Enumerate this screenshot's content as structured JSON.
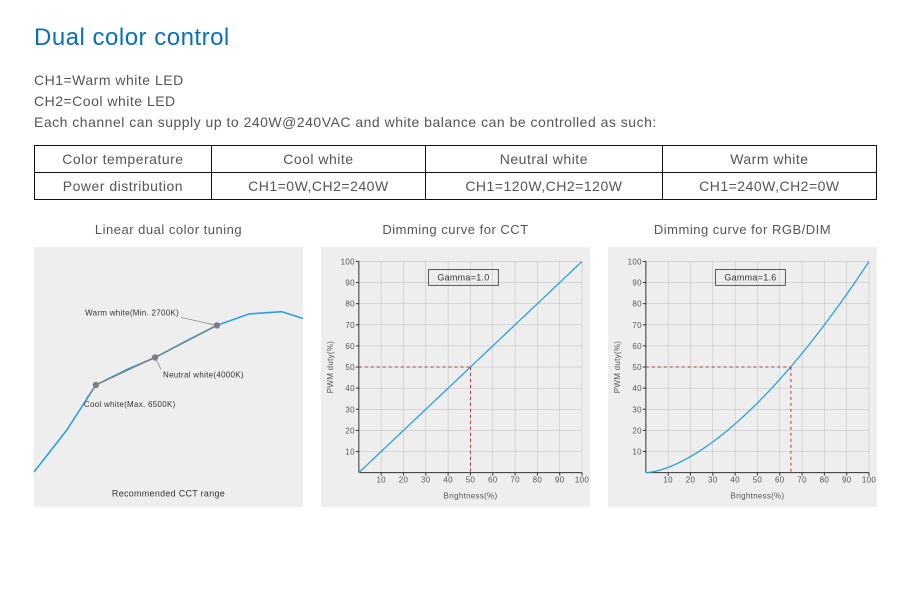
{
  "title": "Dual color control",
  "intro": {
    "line1": "CH1=Warm white LED",
    "line2": "CH2=Cool white LED",
    "line3": "Each channel can supply up to 240W@240VAC and white balance can be controlled as such:"
  },
  "table": {
    "headers": [
      "Color temperature",
      "Cool white",
      "Neutral white",
      "Warm white"
    ],
    "row_label": "Power distribution",
    "cells": [
      "CH1=0W,CH2=240W",
      "CH1=120W,CH2=120W",
      "CH1=240W,CH2=0W"
    ]
  },
  "charts": {
    "panel_bg": "#eeeeee",
    "curve_color": "#2aa1d8",
    "grid_color": "#bdbdbd",
    "marker_color": "#7e7e7e",
    "dash_color": "#b23a3a",
    "axis_fontsize": 8,
    "linear": {
      "title": "Linear dual color tuning",
      "labels": {
        "cool": "Cool white(Max. 6500K)",
        "neutral": "Neutral white(4000K)",
        "warm": "Warm white(Min. 2700K)"
      },
      "footer": "Recommended CCT range",
      "points": {
        "cool": [
          0.23,
          0.6
        ],
        "neutral": [
          0.45,
          0.48
        ],
        "warm": [
          0.68,
          0.34
        ]
      },
      "curve": [
        [
          0,
          0.98
        ],
        [
          0.12,
          0.8
        ],
        [
          0.23,
          0.6
        ],
        [
          0.35,
          0.53
        ],
        [
          0.45,
          0.48
        ],
        [
          0.58,
          0.4
        ],
        [
          0.68,
          0.34
        ],
        [
          0.8,
          0.29
        ],
        [
          0.92,
          0.28
        ],
        [
          1.0,
          0.31
        ]
      ]
    },
    "cct": {
      "title": "Dimming curve for CCT",
      "gamma_label": "Gamma=1.0",
      "xlabel": "Brightness(%)",
      "ylabel": "PWM duty(%)",
      "xlim": [
        0,
        100
      ],
      "ylim": [
        0,
        100
      ],
      "tick_step": 10,
      "dash_point": [
        50,
        50
      ],
      "gamma": 1.0
    },
    "rgb": {
      "title": "Dimming curve for RGB/DIM",
      "gamma_label": "Gamma=1.6",
      "xlabel": "Brightness(%)",
      "ylabel": "PWM duty(%)",
      "xlim": [
        0,
        100
      ],
      "ylim": [
        0,
        100
      ],
      "tick_step": 10,
      "dash_point": [
        65,
        50
      ],
      "gamma": 1.6
    }
  }
}
